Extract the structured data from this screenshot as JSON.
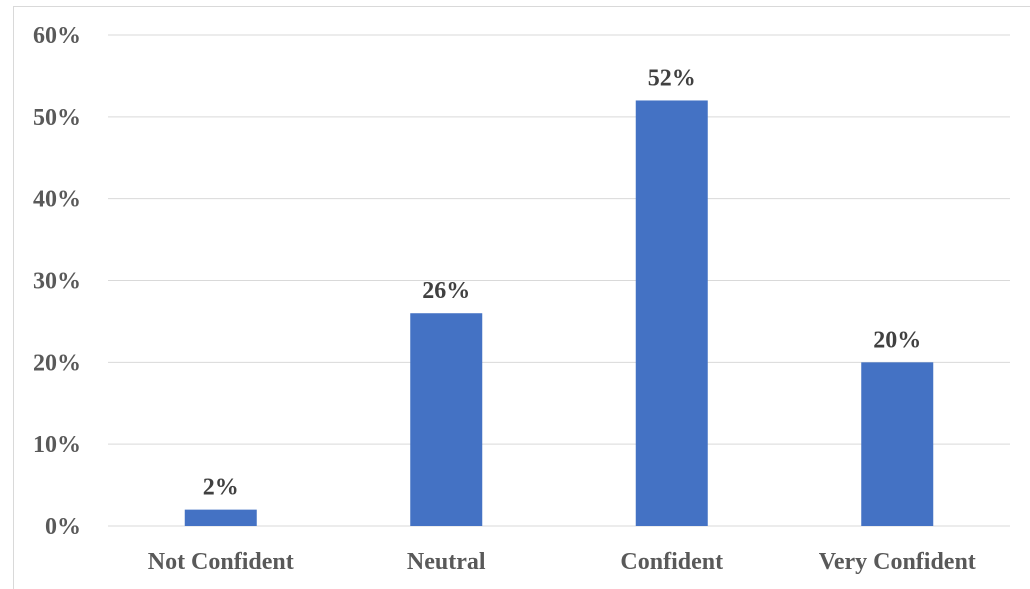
{
  "chart_data": {
    "type": "bar",
    "categories": [
      "Not Confident",
      "Neutral",
      "Confident",
      "Very Confident"
    ],
    "values": [
      2,
      26,
      52,
      20
    ],
    "data_labels": [
      "2%",
      "26%",
      "52%",
      "20%"
    ],
    "title": "",
    "xlabel": "",
    "ylabel": "",
    "ylim": [
      0,
      60
    ],
    "yticks": [
      0,
      10,
      20,
      30,
      40,
      50,
      60
    ],
    "ytick_labels": [
      "0%",
      "10%",
      "20%",
      "30%",
      "40%",
      "50%",
      "60%"
    ],
    "grid": true,
    "legend": "none",
    "bar_color": "#4472c4",
    "grid_color": "#d9d9d9"
  }
}
